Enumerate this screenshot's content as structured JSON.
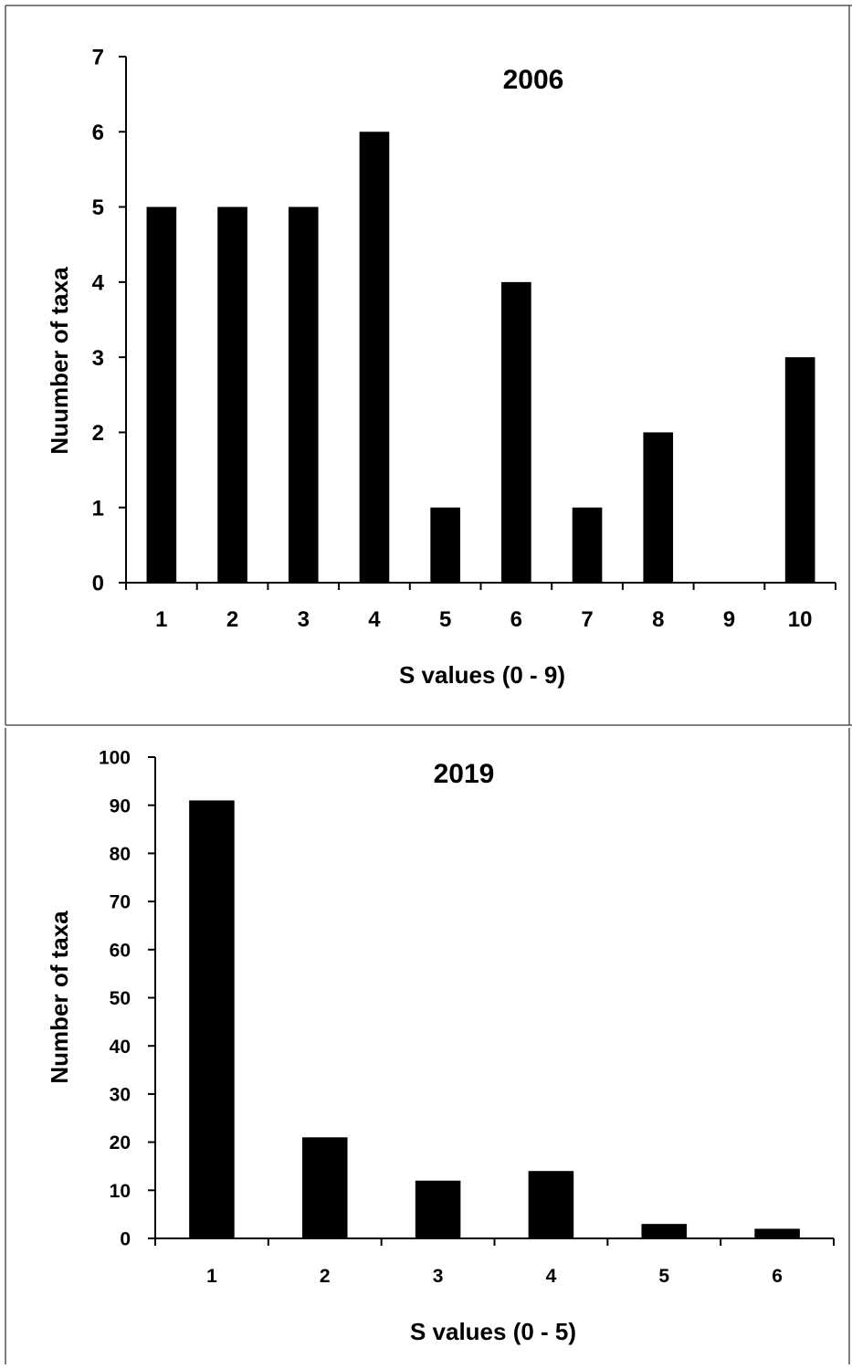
{
  "chart_data": [
    {
      "type": "bar",
      "title": "2006",
      "xlabel": "S values (0 - 9)",
      "ylabel": "Nuumber of taxa",
      "categories": [
        "1",
        "2",
        "3",
        "4",
        "5",
        "6",
        "7",
        "8",
        "9",
        "10"
      ],
      "values": [
        5,
        5,
        5,
        6,
        1,
        4,
        1,
        2,
        0,
        3
      ],
      "ylim": [
        0,
        7
      ],
      "yticks": [
        "0",
        "1",
        "2",
        "3",
        "4",
        "5",
        "6",
        "7"
      ],
      "grid": false,
      "bar_color": "#000000"
    },
    {
      "type": "bar",
      "title": "2019",
      "xlabel": "S values (0 - 5)",
      "ylabel": "Number of taxa",
      "categories": [
        "1",
        "2",
        "3",
        "4",
        "5",
        "6"
      ],
      "values": [
        91,
        21,
        12,
        14,
        3,
        2
      ],
      "ylim": [
        0,
        100
      ],
      "yticks": [
        "0",
        "10",
        "20",
        "30",
        "40",
        "50",
        "60",
        "70",
        "80",
        "90",
        "100"
      ],
      "grid": false,
      "bar_color": "#000000"
    }
  ]
}
